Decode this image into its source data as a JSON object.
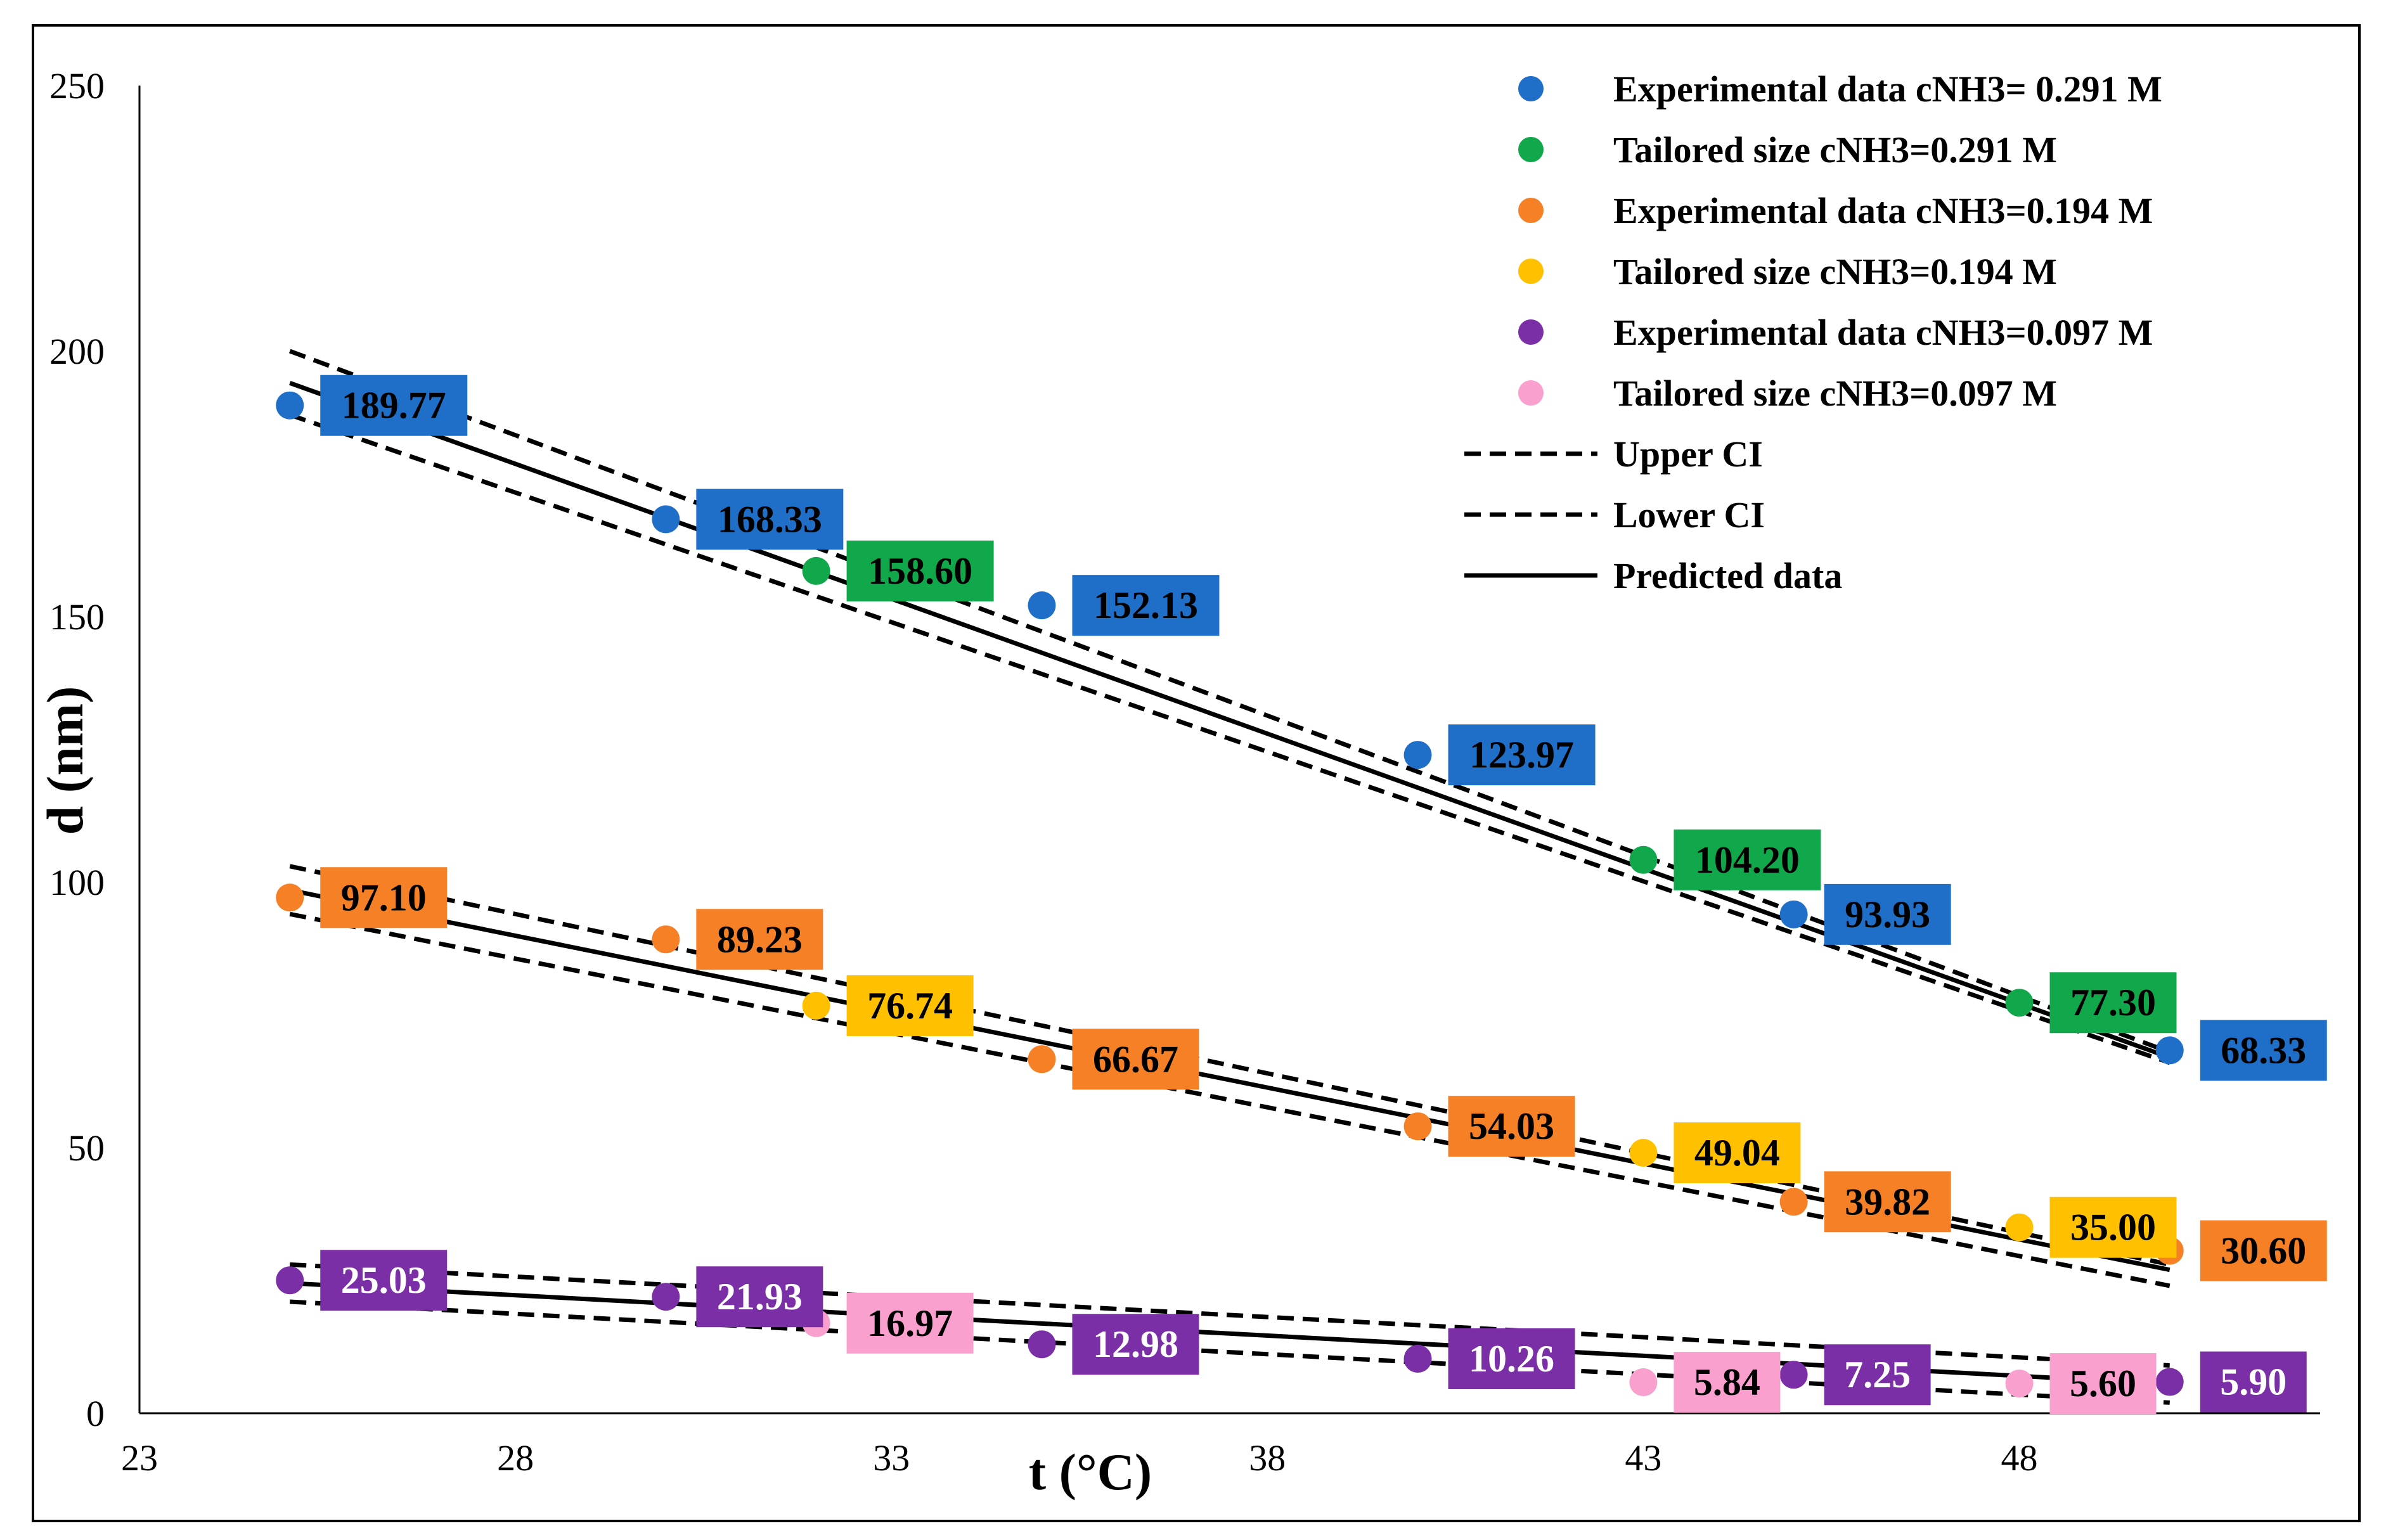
{
  "chart_data": {
    "type": "scatter",
    "xlabel": "t (°C)",
    "ylabel": "d (nm)",
    "xlim": [
      23,
      52
    ],
    "ylim": [
      0,
      250
    ],
    "xticks": [
      23,
      28,
      33,
      38,
      43,
      48
    ],
    "yticks": [
      0,
      50,
      100,
      150,
      200,
      250
    ],
    "legend_position": "top-right",
    "series": [
      {
        "name": "Experimental data cNH3= 0.291 M",
        "color": "#1f6fc8",
        "label_text_color": "#000000",
        "x": [
          25,
          30,
          35,
          40,
          45,
          50
        ],
        "y": [
          189.77,
          168.33,
          152.13,
          123.97,
          93.93,
          68.33
        ],
        "labels": [
          "189.77",
          "168.33",
          "152.13",
          "123.97",
          "93.93",
          "68.33"
        ]
      },
      {
        "name": "Tailored size cNH3=0.291 M",
        "color": "#11a84c",
        "label_text_color": "#000000",
        "x": [
          32,
          43,
          48
        ],
        "y": [
          158.6,
          104.2,
          77.3
        ],
        "labels": [
          "158.60",
          "104.20",
          "77.30"
        ]
      },
      {
        "name": "Experimental data cNH3=0.194 M",
        "color": "#f58025",
        "label_text_color": "#000000",
        "x": [
          25,
          30,
          35,
          40,
          45,
          50
        ],
        "y": [
          97.1,
          89.23,
          66.67,
          54.03,
          39.82,
          30.6
        ],
        "labels": [
          "97.10",
          "89.23",
          "66.67",
          "54.03",
          "39.82",
          "30.60"
        ]
      },
      {
        "name": "Tailored size cNH3=0.194 M",
        "color": "#ffc000",
        "label_text_color": "#000000",
        "x": [
          32,
          43,
          48
        ],
        "y": [
          76.74,
          49.04,
          35.0
        ],
        "labels": [
          "76.74",
          "49.04",
          "35.00"
        ]
      },
      {
        "name": "Experimental data cNH3=0.097 M",
        "color": "#7b2fa6",
        "label_text_color": "#ffffff",
        "x": [
          25,
          30,
          35,
          40,
          45,
          50
        ],
        "y": [
          25.03,
          21.93,
          12.98,
          10.26,
          7.25,
          5.9
        ],
        "labels": [
          "25.03",
          "21.93",
          "12.98",
          "10.26",
          "7.25",
          "5.90"
        ]
      },
      {
        "name": "Tailored size cNH3=0.097 M",
        "color": "#f9a0cf",
        "label_text_color": "#000000",
        "x": [
          32,
          43,
          48
        ],
        "y": [
          16.97,
          5.84,
          5.6
        ],
        "labels": [
          "16.97",
          "5.84",
          "5.60"
        ]
      }
    ],
    "lines": [
      {
        "name": "Upper CI",
        "style": "dashed",
        "legend": true,
        "x": [
          25,
          50
        ],
        "y": [
          200,
          68
        ]
      },
      {
        "name": "Lower CI",
        "style": "dashed",
        "legend": true,
        "x": [
          25,
          50
        ],
        "y": [
          188,
          66
        ]
      },
      {
        "name": "Predicted data",
        "style": "solid",
        "legend": true,
        "x": [
          25,
          50
        ],
        "y": [
          194,
          67
        ]
      },
      {
        "name": "Upper CI 0.194",
        "style": "dashed",
        "legend": false,
        "x": [
          25,
          50
        ],
        "y": [
          103,
          28
        ]
      },
      {
        "name": "Lower CI 0.194",
        "style": "dashed",
        "legend": false,
        "x": [
          25,
          50
        ],
        "y": [
          94,
          24
        ]
      },
      {
        "name": "Predicted 0.194",
        "style": "solid",
        "legend": false,
        "x": [
          25,
          50
        ],
        "y": [
          98.5,
          27
        ]
      },
      {
        "name": "Upper CI 0.097",
        "style": "dashed",
        "legend": false,
        "x": [
          25,
          50
        ],
        "y": [
          28,
          9
        ]
      },
      {
        "name": "Lower CI 0.097",
        "style": "dashed",
        "legend": false,
        "x": [
          25,
          50
        ],
        "y": [
          21,
          2
        ]
      },
      {
        "name": "Predicted 0.097",
        "style": "solid",
        "legend": false,
        "x": [
          25,
          50
        ],
        "y": [
          24.5,
          5.5
        ]
      }
    ]
  }
}
